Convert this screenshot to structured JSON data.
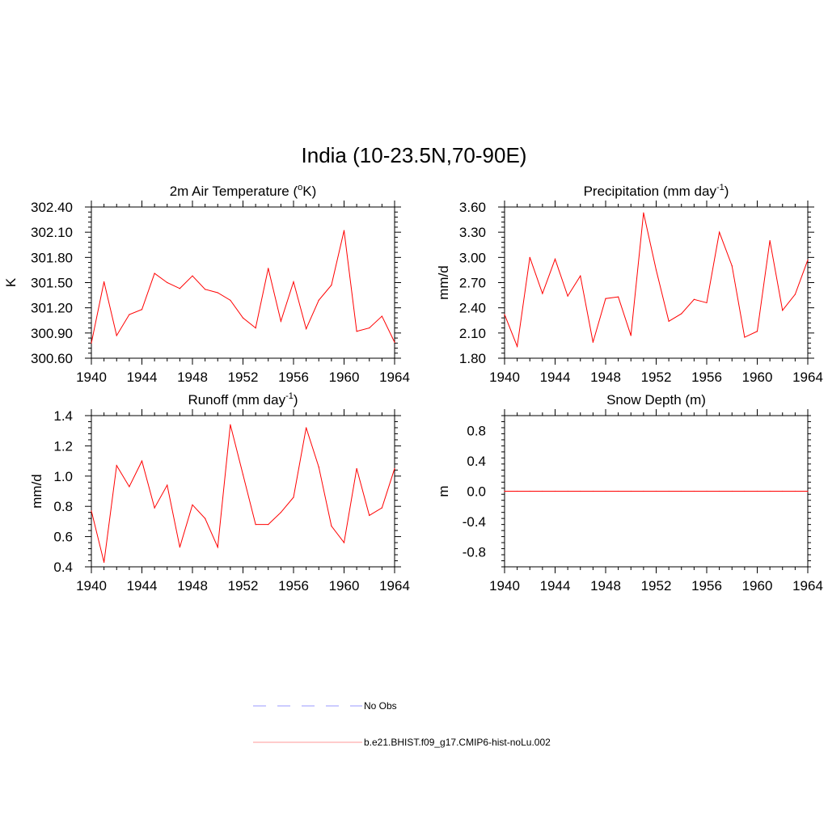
{
  "figure": {
    "title": "India (10-23.5N,70-90E)"
  },
  "colors": {
    "model": "#ff0000",
    "obs": "#9999ff",
    "axes": "#000000"
  },
  "chart_data": [
    {
      "type": "line",
      "id": "temp",
      "title": "2m Air Temperature (",
      "title_sup": "o",
      "title_end": "K)",
      "ylabel": "K",
      "xlim": [
        1940,
        1964
      ],
      "ylim": [
        300.6,
        302.4
      ],
      "xticks": [
        "1940",
        "1944",
        "1948",
        "1952",
        "1956",
        "1960",
        "1964"
      ],
      "yticks": [
        "300.60",
        "300.90",
        "301.20",
        "301.50",
        "301.80",
        "302.10",
        "302.40"
      ],
      "x": [
        1940,
        1941,
        1942,
        1943,
        1944,
        1945,
        1946,
        1947,
        1948,
        1949,
        1950,
        1951,
        1952,
        1953,
        1954,
        1955,
        1956,
        1957,
        1958,
        1959,
        1960,
        1961,
        1962,
        1963,
        1964
      ],
      "series": [
        {
          "name": "b.e21.BHIST.f09_g17.CMIP6-hist-noLu.002",
          "values": [
            300.78,
            301.51,
            300.87,
            301.12,
            301.18,
            301.61,
            301.5,
            301.43,
            301.58,
            301.42,
            301.38,
            301.29,
            301.08,
            300.96,
            301.67,
            301.04,
            301.51,
            300.95,
            301.29,
            301.47,
            302.12,
            300.92,
            300.96,
            301.1,
            300.79
          ]
        }
      ]
    },
    {
      "type": "line",
      "id": "precip",
      "title": "Precipitation (mm day",
      "title_sup": "-1",
      "title_end": ")",
      "ylabel": "mm/d",
      "xlim": [
        1940,
        1964
      ],
      "ylim": [
        1.8,
        3.6
      ],
      "xticks": [
        "1940",
        "1944",
        "1948",
        "1952",
        "1956",
        "1960",
        "1964"
      ],
      "yticks": [
        "1.80",
        "2.10",
        "2.40",
        "2.70",
        "3.00",
        "3.30",
        "3.60"
      ],
      "x": [
        1940,
        1941,
        1942,
        1943,
        1944,
        1945,
        1946,
        1947,
        1948,
        1949,
        1950,
        1951,
        1952,
        1953,
        1954,
        1955,
        1956,
        1957,
        1958,
        1959,
        1960,
        1961,
        1962,
        1963,
        1964
      ],
      "series": [
        {
          "name": "b.e21.BHIST.f09_g17.CMIP6-hist-noLu.002",
          "values": [
            2.32,
            1.94,
            3.0,
            2.57,
            2.98,
            2.54,
            2.78,
            1.99,
            2.51,
            2.53,
            2.07,
            3.53,
            2.85,
            2.24,
            2.33,
            2.5,
            2.46,
            3.3,
            2.9,
            2.05,
            2.12,
            3.2,
            2.37,
            2.56,
            2.97
          ]
        }
      ]
    },
    {
      "type": "line",
      "id": "runoff",
      "title": "Runoff (mm day",
      "title_sup": "-1",
      "title_end": ")",
      "ylabel": "mm/d",
      "xlim": [
        1940,
        1964
      ],
      "ylim": [
        0.4,
        1.4
      ],
      "xticks": [
        "1940",
        "1944",
        "1948",
        "1952",
        "1956",
        "1960",
        "1964"
      ],
      "yticks": [
        "0.4",
        "0.6",
        "0.8",
        "1.0",
        "1.2",
        "1.4"
      ],
      "x": [
        1940,
        1941,
        1942,
        1943,
        1944,
        1945,
        1946,
        1947,
        1948,
        1949,
        1950,
        1951,
        1952,
        1953,
        1954,
        1955,
        1956,
        1957,
        1958,
        1959,
        1960,
        1961,
        1962,
        1963,
        1964
      ],
      "series": [
        {
          "name": "b.e21.BHIST.f09_g17.CMIP6-hist-noLu.002",
          "values": [
            0.77,
            0.43,
            1.07,
            0.93,
            1.1,
            0.79,
            0.94,
            0.53,
            0.81,
            0.72,
            0.53,
            1.34,
            1.01,
            0.68,
            0.68,
            0.76,
            0.86,
            1.32,
            1.06,
            0.67,
            0.56,
            1.05,
            0.74,
            0.79,
            1.05
          ]
        }
      ]
    },
    {
      "type": "line",
      "id": "snow",
      "title": "Snow Depth (m)",
      "title_sup": "",
      "title_end": "",
      "ylabel": "m",
      "xlim": [
        1940,
        1964
      ],
      "ylim": [
        -1.0,
        1.0
      ],
      "xticks": [
        "1940",
        "1944",
        "1948",
        "1952",
        "1956",
        "1960",
        "1964"
      ],
      "yticks": [
        "-0.8",
        "-0.4",
        "0.0",
        "0.4",
        "0.8"
      ],
      "ytick_values": [
        -0.8,
        -0.4,
        0.0,
        0.4,
        0.8
      ],
      "x": [
        1940,
        1941,
        1942,
        1943,
        1944,
        1945,
        1946,
        1947,
        1948,
        1949,
        1950,
        1951,
        1952,
        1953,
        1954,
        1955,
        1956,
        1957,
        1958,
        1959,
        1960,
        1961,
        1962,
        1963,
        1964
      ],
      "series": [
        {
          "name": "b.e21.BHIST.f09_g17.CMIP6-hist-noLu.002",
          "values": [
            0,
            0,
            0,
            0,
            0,
            0,
            0,
            0,
            0,
            0,
            0,
            0,
            0,
            0,
            0,
            0,
            0,
            0,
            0,
            0,
            0,
            0,
            0,
            0,
            0
          ]
        }
      ]
    }
  ],
  "legend": {
    "items": [
      {
        "label": "No Obs",
        "style": "dashed"
      },
      {
        "label": "b.e21.BHIST.f09_g17.CMIP6-hist-noLu.002",
        "style": "solid"
      }
    ]
  }
}
